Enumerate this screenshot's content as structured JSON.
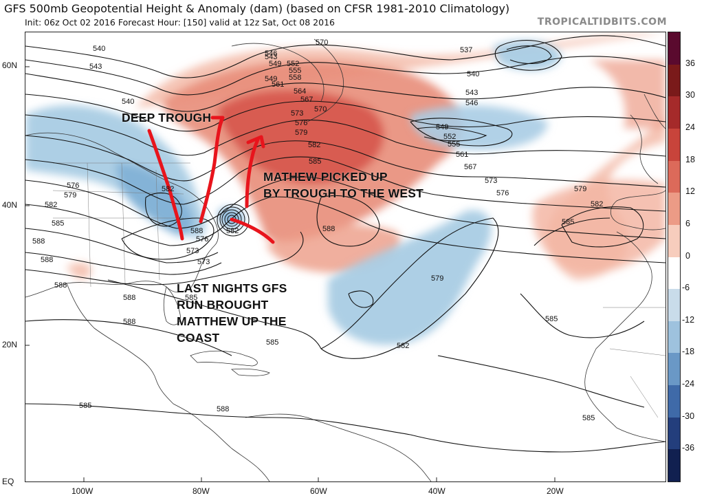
{
  "header": {
    "title": "GFS 500mb Geopotential Height & Anomaly (dam) (based on CFSR 1981-2010 Climatology)",
    "subtitle": "Init: 06z Oct 02 2016   Forecast Hour: [150]   valid at 12z Sat, Oct 08 2016",
    "brand": "TROPICALTIDBITS.COM"
  },
  "axes": {
    "lat_labels": [
      "60N",
      "40N",
      "20N",
      "EQ"
    ],
    "lon_labels": [
      "100W",
      "80W",
      "60W",
      "40W",
      "20W"
    ]
  },
  "colorbar": {
    "labels": [
      "36",
      "30",
      "24",
      "18",
      "12",
      "6",
      "0",
      "-6",
      "-12",
      "-18",
      "-24",
      "-30",
      "-36"
    ],
    "colors": [
      "#5a0a2e",
      "#7a1a1a",
      "#a52a2a",
      "#c8443b",
      "#dc6a5a",
      "#ec9b86",
      "#f7cdbd",
      "#ffffff",
      "#c9dcea",
      "#9ec2de",
      "#6a98c6",
      "#3f6aa8",
      "#233e7c",
      "#112050"
    ]
  },
  "contour_labels": [
    "540",
    "543",
    "546",
    "549",
    "552",
    "555",
    "558",
    "561",
    "564",
    "567",
    "570",
    "573",
    "576",
    "579",
    "582",
    "585",
    "588",
    "543",
    "537",
    "540",
    "543",
    "546",
    "549",
    "552",
    "555",
    "561",
    "567",
    "573",
    "576",
    "579",
    "582",
    "585",
    "546",
    "543",
    "540",
    "570",
    "573",
    "576",
    "579",
    "582",
    "585",
    "588",
    "588",
    "588",
    "588",
    "585",
    "585",
    "585",
    "588",
    "582",
    "585",
    "579",
    "576",
    "573",
    "573",
    "582",
    "588",
    "585",
    "588"
  ],
  "annotations": {
    "deep_trough": "DEEP TROUGH",
    "matthew_line1": "MATHEW PICKED UP",
    "matthew_line2": "BY TROUGH TO THE WEST",
    "gfs_line1": "LAST NIGHTS GFS",
    "gfs_line2": "RUN BROUGHT",
    "gfs_line3": "MATTHEW UP THE",
    "gfs_line4": "COAST"
  },
  "style": {
    "arrow_color": "#e8141c",
    "positive_anomaly": "#e27565",
    "negative_anomaly": "#9cc3de"
  }
}
